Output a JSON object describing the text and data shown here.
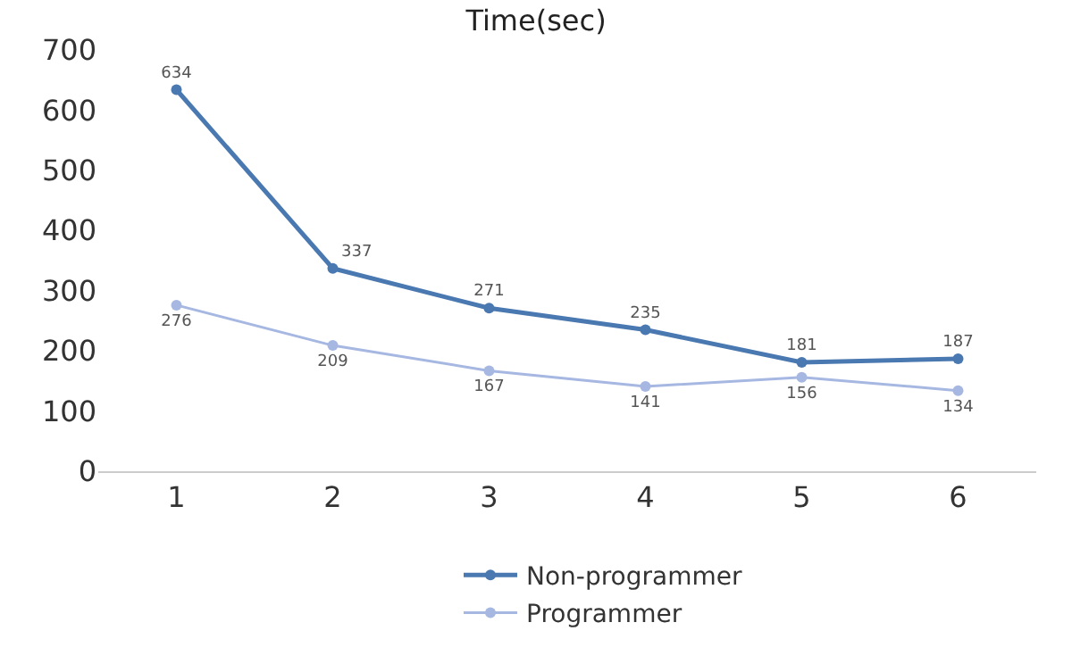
{
  "chart_data": {
    "type": "line",
    "title": "Time(sec)",
    "categories": [
      "1",
      "2",
      "3",
      "4",
      "5",
      "6"
    ],
    "series": [
      {
        "name": "Non-programmer",
        "color": "#4a78b0",
        "values": [
          634,
          337,
          271,
          235,
          181,
          187
        ]
      },
      {
        "name": "Programmer",
        "color": "#a6b8e2",
        "values": [
          276,
          209,
          167,
          141,
          156,
          134
        ]
      }
    ],
    "ylim": [
      0,
      700
    ],
    "yticks": [
      0,
      100,
      200,
      300,
      400,
      500,
      600,
      700
    ],
    "grid": false,
    "legend": "bottom",
    "marker": "circle",
    "line_style": "solid",
    "data_labels": true
  }
}
